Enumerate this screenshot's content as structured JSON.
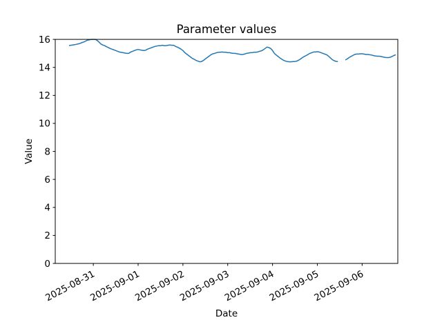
{
  "figure": {
    "title": "Parameter values",
    "xlabel": "Date",
    "ylabel": "Value"
  },
  "chart_data": {
    "type": "line",
    "title": "Parameter values",
    "xlabel": "Date",
    "ylabel": "Value",
    "legend": "none",
    "grid": false,
    "line_color": "#1f77b4",
    "line_width": 1.5,
    "ylim": [
      0,
      16
    ],
    "y_ticks": [
      0,
      2,
      4,
      6,
      8,
      10,
      12,
      14,
      16
    ],
    "x_tick_labels": [
      "2025-08-31",
      "2025-09-01",
      "2025-09-02",
      "2025-09-03",
      "2025-09-04",
      "2025-09-05",
      "2025-09-06"
    ],
    "x_tick_hours": [
      13,
      37,
      61,
      85,
      109,
      133,
      157
    ],
    "x_start": "2025-08-30 11:00",
    "x_end": "2025-09-06 18:00",
    "x_interval_hours": 1,
    "gap_note": "missing samples near 2025-09-05 12:00-14:00 shown as line break",
    "values": [
      15.55,
      15.58,
      15.6,
      15.62,
      15.65,
      15.68,
      15.72,
      15.78,
      15.82,
      15.88,
      15.95,
      15.97,
      16.0,
      16.0,
      16.0,
      15.93,
      15.82,
      15.68,
      15.6,
      15.55,
      15.48,
      15.42,
      15.35,
      15.3,
      15.25,
      15.2,
      15.15,
      15.1,
      15.07,
      15.05,
      15.02,
      15.0,
      15.0,
      15.1,
      15.15,
      15.2,
      15.25,
      15.28,
      15.25,
      15.22,
      15.2,
      15.22,
      15.3,
      15.35,
      15.4,
      15.45,
      15.5,
      15.52,
      15.55,
      15.55,
      15.58,
      15.55,
      15.55,
      15.58,
      15.6,
      15.58,
      15.58,
      15.5,
      15.45,
      15.38,
      15.3,
      15.2,
      15.05,
      14.95,
      14.85,
      14.75,
      14.64,
      14.58,
      14.5,
      14.45,
      14.4,
      14.42,
      14.5,
      14.6,
      14.7,
      14.8,
      14.9,
      14.97,
      15.0,
      15.05,
      15.08,
      15.08,
      15.1,
      15.08,
      15.08,
      15.05,
      15.05,
      15.02,
      15.0,
      15.0,
      14.97,
      14.95,
      14.92,
      14.92,
      14.95,
      15.0,
      15.02,
      15.05,
      15.05,
      15.08,
      15.08,
      15.1,
      15.15,
      15.18,
      15.25,
      15.35,
      15.45,
      15.42,
      15.35,
      15.2,
      15.0,
      14.88,
      14.78,
      14.67,
      14.58,
      14.5,
      14.45,
      14.42,
      14.4,
      14.4,
      14.42,
      14.42,
      14.45,
      14.52,
      14.6,
      14.7,
      14.78,
      14.85,
      14.92,
      15.0,
      15.05,
      15.1,
      15.1,
      15.12,
      15.1,
      15.05,
      15.0,
      14.95,
      14.9,
      14.8,
      14.68,
      14.55,
      14.48,
      14.43,
      14.42,
      null,
      null,
      null,
      14.53,
      14.6,
      14.7,
      14.78,
      14.85,
      14.92,
      14.95,
      14.95,
      14.97,
      14.97,
      14.95,
      14.92,
      14.92,
      14.9,
      14.88,
      14.85,
      14.82,
      14.8,
      14.8,
      14.78,
      14.75,
      14.72,
      14.7,
      14.7,
      14.72,
      14.78,
      14.85,
      14.9
    ]
  }
}
